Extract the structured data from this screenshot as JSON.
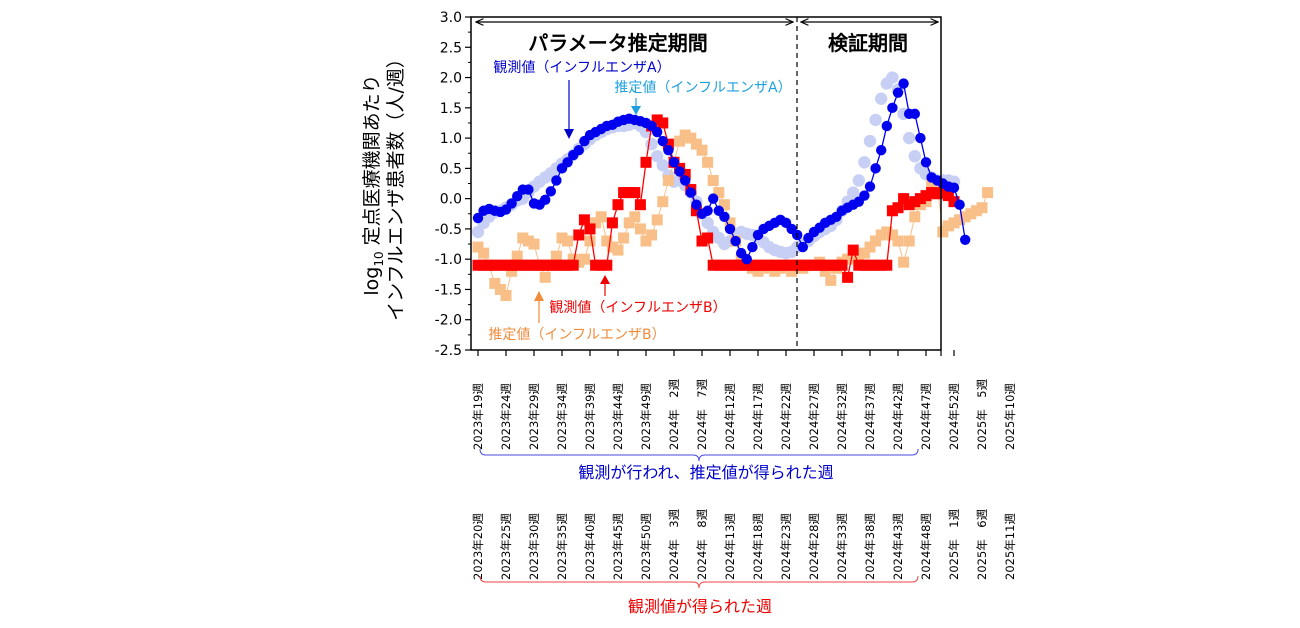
{
  "chart_data": {
    "type": "scatter",
    "ylabel_line1": "log",
    "ylabel_sub": "10",
    "ylabel_line1_rest": " 定点医療機関あたり",
    "ylabel_line2": "インフルエンザ患者数（人/週）",
    "ylim": [
      -2.5,
      3.0
    ],
    "yticks": [
      "3.0",
      "2.5",
      "2.0",
      "1.5",
      "1.0",
      "0.5",
      "0.0",
      "-0.5",
      "-1.0",
      "-1.5",
      "-2.0",
      "-2.5"
    ],
    "period_labels": {
      "parameter": "パラメータ推定期間",
      "validation": "検証期間"
    },
    "annotations": {
      "obs_a": "観測値（インフルエンザA）",
      "est_a": "推定値（インフルエンザA）",
      "obs_b": "観測値（インフルエンザB）",
      "est_b": "推定値（インフルエンザB）"
    },
    "x_labels_top": [
      "2023年19週",
      "2023年24週",
      "2023年29週",
      "2023年34週",
      "2023年39週",
      "2023年44週",
      "2023年49週",
      "2024年　2週",
      "2024年　7週",
      "2024年12週",
      "2024年17週",
      "2024年22週",
      "2024年27週",
      "2024年32週",
      "2024年37週",
      "2024年42週",
      "2024年47週",
      "2024年52週",
      "2025年　5週",
      "2025年10週"
    ],
    "x_labels_bottom": [
      "2023年20週",
      "2023年25週",
      "2023年30週",
      "2023年35週",
      "2023年40週",
      "2023年45週",
      "2023年50週",
      "2024年　3週",
      "2024年　8週",
      "2024年13週",
      "2024年18週",
      "2024年23週",
      "2024年28週",
      "2024年33週",
      "2024年38週",
      "2024年43週",
      "2024年48週",
      "2025年　1週",
      "2025年　6週",
      "2025年11週"
    ],
    "caption_top": "観測が行われ、推定値が得られた週",
    "caption_bottom": "観測値が得られた週",
    "colors": {
      "obs_a": "#0000ee",
      "est_a": "#c8cff5",
      "obs_b": "#ff0000",
      "est_b": "#f8c088",
      "label_obs_a": "#0000cc",
      "label_est_a": "#1ea0e0",
      "label_obs_b": "#ee0000",
      "label_est_b": "#f08c3c",
      "caption_top": "#0000cc",
      "caption_bottom": "#ee0000"
    },
    "series": [
      {
        "key": "obs_a",
        "values": [
          -0.32,
          -0.2,
          -0.17,
          -0.2,
          -0.22,
          -0.18,
          -0.08,
          0.04,
          0.15,
          0.15,
          -0.08,
          -0.1,
          -0.02,
          0.12,
          0.3,
          0.5,
          0.6,
          0.72,
          0.8,
          0.95,
          1.05,
          1.1,
          1.15,
          1.2,
          1.22,
          1.27,
          1.3,
          1.32,
          1.3,
          1.28,
          1.25,
          1.2,
          1.1,
          0.95,
          0.8,
          0.6,
          0.45,
          0.3,
          0.1,
          -0.1,
          -0.25,
          -0.2,
          0.0,
          -0.2,
          -0.3,
          -0.5,
          -0.7,
          -0.9,
          -1.0,
          -0.8,
          -0.6,
          -0.5,
          -0.45,
          -0.4,
          -0.35,
          -0.4,
          -0.5,
          -0.6,
          -0.8,
          -0.65,
          -0.55,
          -0.48,
          -0.4,
          -0.35,
          -0.3,
          -0.2,
          -0.15,
          -0.1,
          -0.05,
          0.05,
          0.2,
          0.5,
          0.8,
          1.2,
          1.5,
          1.75,
          1.9,
          1.4,
          1.4,
          1.0,
          0.6,
          0.35,
          0.3,
          0.25,
          0.2,
          0.18,
          -0.1,
          -0.68
        ]
      },
      {
        "key": "est_a",
        "values": [
          -0.55,
          -0.4,
          -0.3,
          -0.22,
          -0.2,
          -0.15,
          -0.1,
          -0.03,
          0.0,
          0.1,
          0.2,
          0.28,
          0.35,
          0.42,
          0.5,
          0.58,
          0.65,
          0.72,
          0.82,
          0.9,
          0.98,
          1.05,
          1.1,
          1.15,
          1.18,
          1.2,
          1.2,
          1.22,
          1.25,
          1.2,
          1.1,
          0.9,
          0.7,
          0.55,
          0.38,
          0.28,
          0.3,
          0.22,
          0.1,
          -0.05,
          -0.25,
          -0.4,
          -0.55,
          -0.65,
          -0.75,
          -0.7,
          -0.6,
          -0.55,
          -0.58,
          -0.6,
          -0.65,
          -0.72,
          -0.8,
          -0.85,
          -0.88,
          -0.9,
          -0.88,
          -0.8,
          -0.75,
          -0.7,
          -0.62,
          -0.55,
          -0.5,
          -0.45,
          -0.35,
          -0.2,
          -0.05,
          0.1,
          0.3,
          0.6,
          0.95,
          1.3,
          1.65,
          1.9,
          2.0,
          1.8,
          1.4,
          1.0,
          0.7,
          0.5,
          0.4,
          0.35,
          0.3,
          0.3,
          0.3,
          0.28
        ]
      },
      {
        "key": "obs_b",
        "values": [
          -1.1,
          -1.1,
          -1.1,
          -1.1,
          -1.1,
          -1.1,
          -1.1,
          -1.1,
          -1.1,
          -1.1,
          -1.1,
          -1.1,
          -1.1,
          -1.1,
          -1.1,
          -1.1,
          -1.1,
          -1.1,
          -0.6,
          -0.35,
          -0.5,
          -1.1,
          -1.1,
          -1.1,
          -0.4,
          -0.1,
          0.1,
          0.1,
          0.1,
          -0.1,
          0.6,
          1.2,
          1.3,
          1.25,
          0.9,
          0.6,
          0.5,
          0.4,
          0.15,
          -0.2,
          -0.7,
          -0.65,
          -1.1,
          -1.1,
          -1.1,
          -1.1,
          -1.1,
          -1.1,
          -1.1,
          -1.1,
          -1.1,
          -1.1,
          -1.1,
          -1.1,
          -1.1,
          -1.1,
          -1.1,
          -1.1,
          -1.1,
          -1.1,
          -1.1,
          -1.1,
          -1.1,
          -1.1,
          -1.1,
          -1.1,
          -1.3,
          -0.85,
          -1.1,
          -1.1,
          -1.1,
          -1.1,
          -1.1,
          -1.1,
          -0.2,
          -0.15,
          0.0,
          -0.1,
          -0.05,
          0.0,
          0.05,
          0.1,
          0.08,
          0.1,
          0.05,
          -0.05
        ]
      },
      {
        "key": "est_b",
        "values": [
          -0.8,
          -0.9,
          -1.1,
          -1.4,
          -1.5,
          -1.6,
          -1.2,
          -0.95,
          -0.65,
          -0.7,
          -0.75,
          -1.1,
          -1.3,
          -1.1,
          -0.95,
          -0.65,
          -0.7,
          -1.0,
          -1.05,
          -1.0,
          -0.7,
          -0.4,
          -0.3,
          -0.7,
          -0.8,
          -0.85,
          -0.65,
          -0.4,
          -0.3,
          -0.5,
          -0.7,
          -0.6,
          -0.35,
          -0.05,
          0.3,
          0.6,
          0.95,
          1.05,
          1.0,
          0.9,
          0.8,
          0.6,
          0.3,
          0.1,
          -0.1,
          -0.4,
          -0.7,
          -1.0,
          -1.1,
          -1.15,
          -1.2,
          -1.15,
          -1.1,
          -1.2,
          -1.15,
          -1.1,
          -1.2,
          -1.1,
          -1.15,
          -1.1,
          -1.1,
          -1.05,
          -1.2,
          -1.35,
          -1.15,
          -1.05,
          -1.0,
          -0.95,
          -1.0,
          -0.9,
          -0.8,
          -0.7,
          -0.6,
          -0.55,
          -0.6,
          -0.7,
          -1.05,
          -0.7,
          -0.3,
          -0.1,
          -0.05,
          0.25,
          0.25,
          -0.55,
          -0.45,
          -0.4,
          -0.35,
          -0.3,
          -0.25,
          -0.2,
          -0.15,
          0.1
        ]
      }
    ]
  }
}
